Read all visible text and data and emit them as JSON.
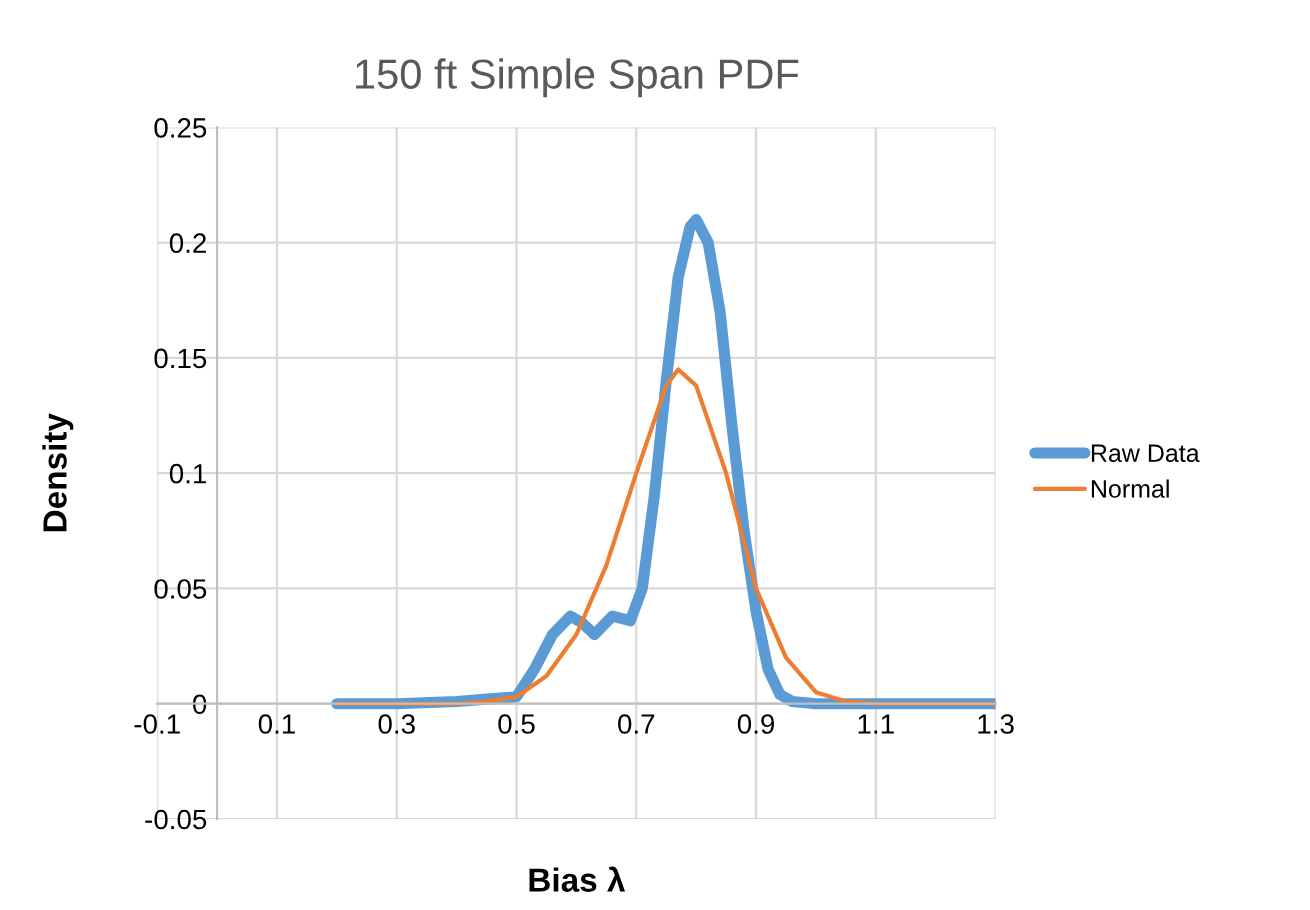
{
  "chart_data": {
    "type": "line",
    "title": "150 ft Simple Span PDF",
    "xlabel": "Bias λ",
    "ylabel": "Density",
    "xlim": [
      -0.1,
      1.3
    ],
    "xticks": [
      -0.1,
      0.1,
      0.3,
      0.5,
      0.7,
      0.9,
      1.1,
      1.3
    ],
    "ylim": [
      -0.05,
      0.25
    ],
    "yticks": [
      -0.05,
      0,
      0.05,
      0.1,
      0.15,
      0.2,
      0.25
    ],
    "grid": true,
    "legend": "right",
    "marker": "none",
    "line_style": "solid",
    "series": [
      {
        "name": "Raw Data",
        "color": "#5b9bd5",
        "x": [
          0.2,
          0.3,
          0.4,
          0.45,
          0.5,
          0.53,
          0.56,
          0.59,
          0.61,
          0.63,
          0.66,
          0.69,
          0.71,
          0.73,
          0.75,
          0.77,
          0.79,
          0.8,
          0.82,
          0.84,
          0.86,
          0.88,
          0.9,
          0.92,
          0.94,
          0.96,
          1.0,
          1.1,
          1.2,
          1.3
        ],
        "values": [
          0,
          0,
          0.001,
          0.002,
          0.003,
          0.015,
          0.03,
          0.038,
          0.035,
          0.03,
          0.038,
          0.036,
          0.05,
          0.09,
          0.14,
          0.185,
          0.207,
          0.21,
          0.2,
          0.17,
          0.12,
          0.075,
          0.04,
          0.015,
          0.004,
          0.001,
          0,
          0,
          0,
          0
        ]
      },
      {
        "name": "Normal",
        "color": "#ed7d31",
        "x": [
          0.2,
          0.3,
          0.4,
          0.45,
          0.5,
          0.55,
          0.6,
          0.65,
          0.7,
          0.75,
          0.77,
          0.8,
          0.85,
          0.9,
          0.95,
          1.0,
          1.05,
          1.1,
          1.2,
          1.3
        ],
        "values": [
          0,
          0,
          0,
          0.001,
          0.003,
          0.012,
          0.03,
          0.06,
          0.1,
          0.138,
          0.145,
          0.138,
          0.1,
          0.05,
          0.02,
          0.005,
          0.001,
          0,
          0,
          0
        ]
      }
    ]
  }
}
